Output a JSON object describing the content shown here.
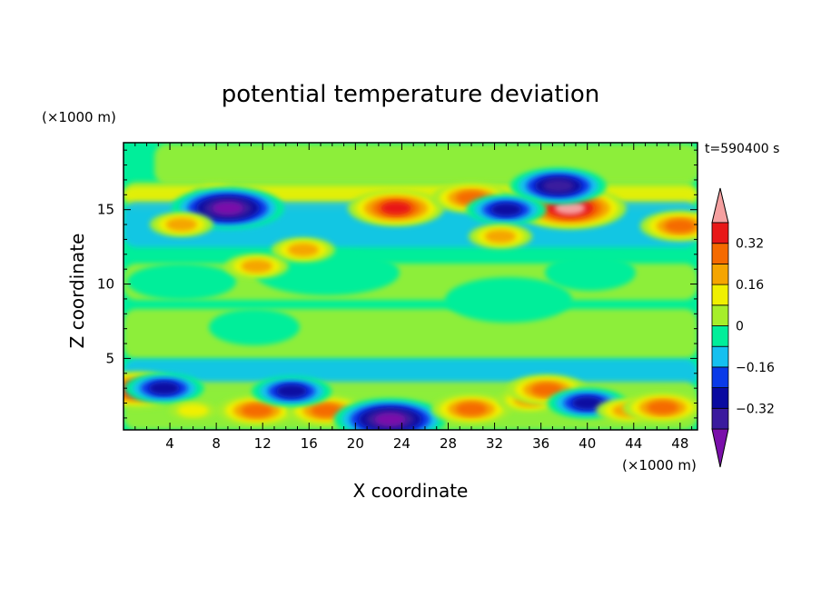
{
  "chart_data": {
    "type": "heatmap",
    "title": "potential temperature deviation",
    "time_label": "t=590400 s",
    "xlabel": "X coordinate",
    "ylabel": "Z coordinate",
    "x_unit": "(×1000 m)",
    "y_unit": "(×1000 m)",
    "xlim": [
      0,
      49.5
    ],
    "ylim": [
      0.2,
      19.5
    ],
    "x_ticks": [
      "4",
      "8",
      "12",
      "16",
      "20",
      "24",
      "28",
      "32",
      "36",
      "40",
      "44",
      "48"
    ],
    "y_ticks": [
      "5",
      "10",
      "15"
    ],
    "colorbar": {
      "levels": [
        -0.48,
        -0.4,
        -0.32,
        -0.24,
        -0.16,
        -0.08,
        0,
        0.08,
        0.16,
        0.24,
        0.32,
        0.4,
        0.48
      ],
      "colors": [
        "#7a0faa",
        "#3a1a9e",
        "#0a0aa0",
        "#0a3ae8",
        "#15c0f0",
        "#00ee9a",
        "#a6ee2a",
        "#f0f000",
        "#f5a500",
        "#f56a00",
        "#e81818",
        "#f5a0a0"
      ],
      "tick_labels": [
        "0.32",
        "0.16",
        "0",
        "−0.16",
        "−0.32"
      ],
      "tick_values": [
        0.32,
        0.16,
        0,
        -0.16,
        -0.32
      ]
    },
    "background_level": "0.04",
    "features": [
      {
        "x": 8,
        "z": 16.2,
        "value": 0.12
      },
      {
        "x": 9,
        "z": 15.1,
        "value": -0.44
      },
      {
        "x": 5,
        "z": 14.0,
        "value": 0.22
      },
      {
        "x": 23.5,
        "z": 15.1,
        "value": 0.42
      },
      {
        "x": 30,
        "z": 15.8,
        "value": 0.28
      },
      {
        "x": 38.5,
        "z": 15.1,
        "value": 0.45
      },
      {
        "x": 37.5,
        "z": 16.6,
        "value": -0.42
      },
      {
        "x": 33,
        "z": 15.0,
        "value": -0.34
      },
      {
        "x": 32.5,
        "z": 13.2,
        "value": 0.26
      },
      {
        "x": 48,
        "z": 13.9,
        "value": 0.3
      },
      {
        "x": 15.5,
        "z": 12.3,
        "value": 0.25
      },
      {
        "x": 11.5,
        "z": 11.2,
        "value": 0.26
      },
      {
        "x": 1.2,
        "z": 2.9,
        "value": 0.4
      },
      {
        "x": 11.5,
        "z": 1.5,
        "value": 0.34
      },
      {
        "x": 17.5,
        "z": 1.5,
        "value": 0.3
      },
      {
        "x": 23,
        "z": 0.9,
        "value": -0.44
      },
      {
        "x": 30,
        "z": 1.6,
        "value": 0.3
      },
      {
        "x": 35,
        "z": 2.2,
        "value": 0.2
      },
      {
        "x": 36.5,
        "z": 2.9,
        "value": 0.35
      },
      {
        "x": 40,
        "z": 2.0,
        "value": -0.34
      },
      {
        "x": 43.5,
        "z": 1.5,
        "value": 0.22
      },
      {
        "x": 46.5,
        "z": 1.7,
        "value": 0.3
      },
      {
        "x": 14.5,
        "z": 2.8,
        "value": -0.3
      },
      {
        "x": 3.5,
        "z": 3.0,
        "value": -0.28
      },
      {
        "x": 6,
        "z": 1.5,
        "value": 0.18
      }
    ]
  }
}
